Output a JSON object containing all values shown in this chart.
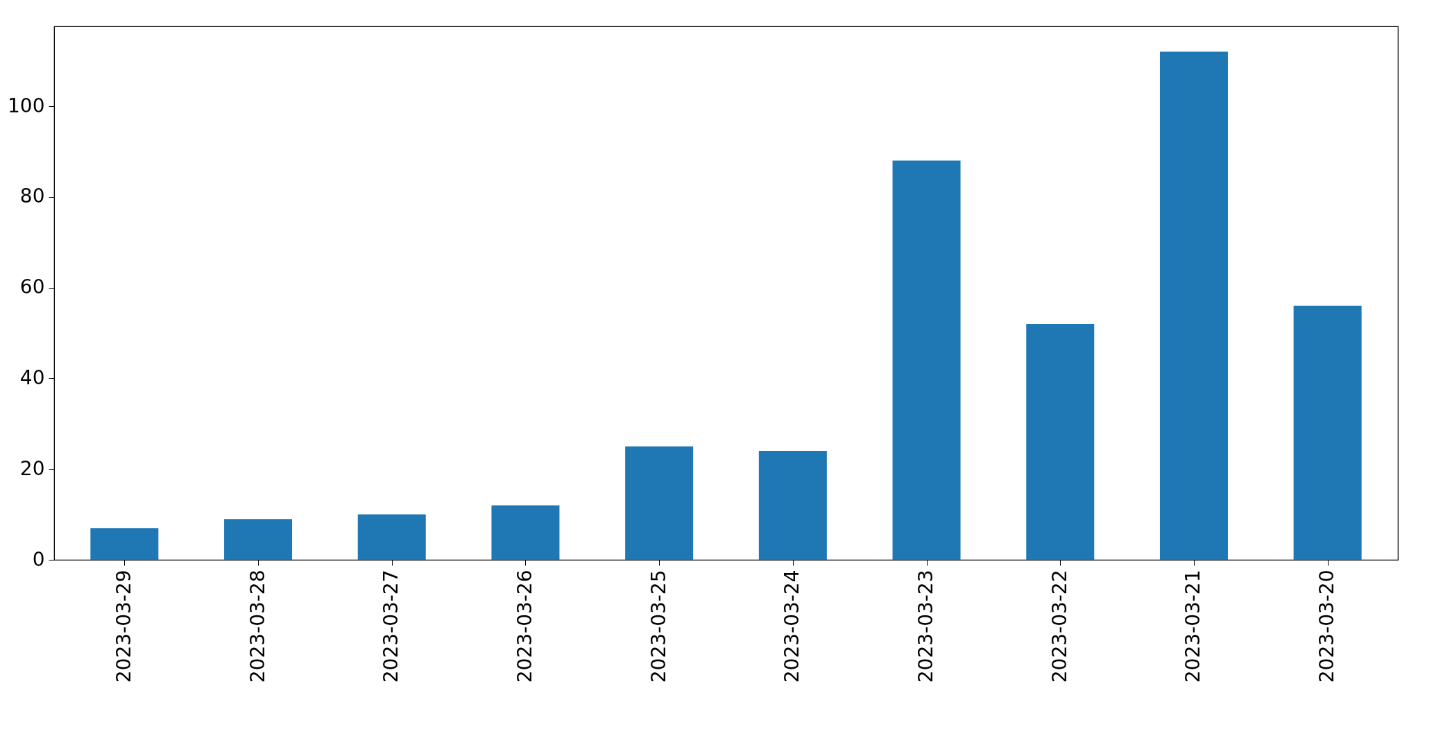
{
  "chart_data": {
    "type": "bar",
    "categories": [
      "2023-03-29",
      "2023-03-28",
      "2023-03-27",
      "2023-03-26",
      "2023-03-25",
      "2023-03-24",
      "2023-03-23",
      "2023-03-22",
      "2023-03-21",
      "2023-03-20"
    ],
    "values": [
      7,
      9,
      10,
      12,
      25,
      24,
      88,
      52,
      112,
      56
    ],
    "color": "#1f77b4",
    "ylim": [
      0,
      117.6
    ],
    "yticks": [
      0,
      20,
      40,
      60,
      80,
      100
    ],
    "grid": false
  }
}
